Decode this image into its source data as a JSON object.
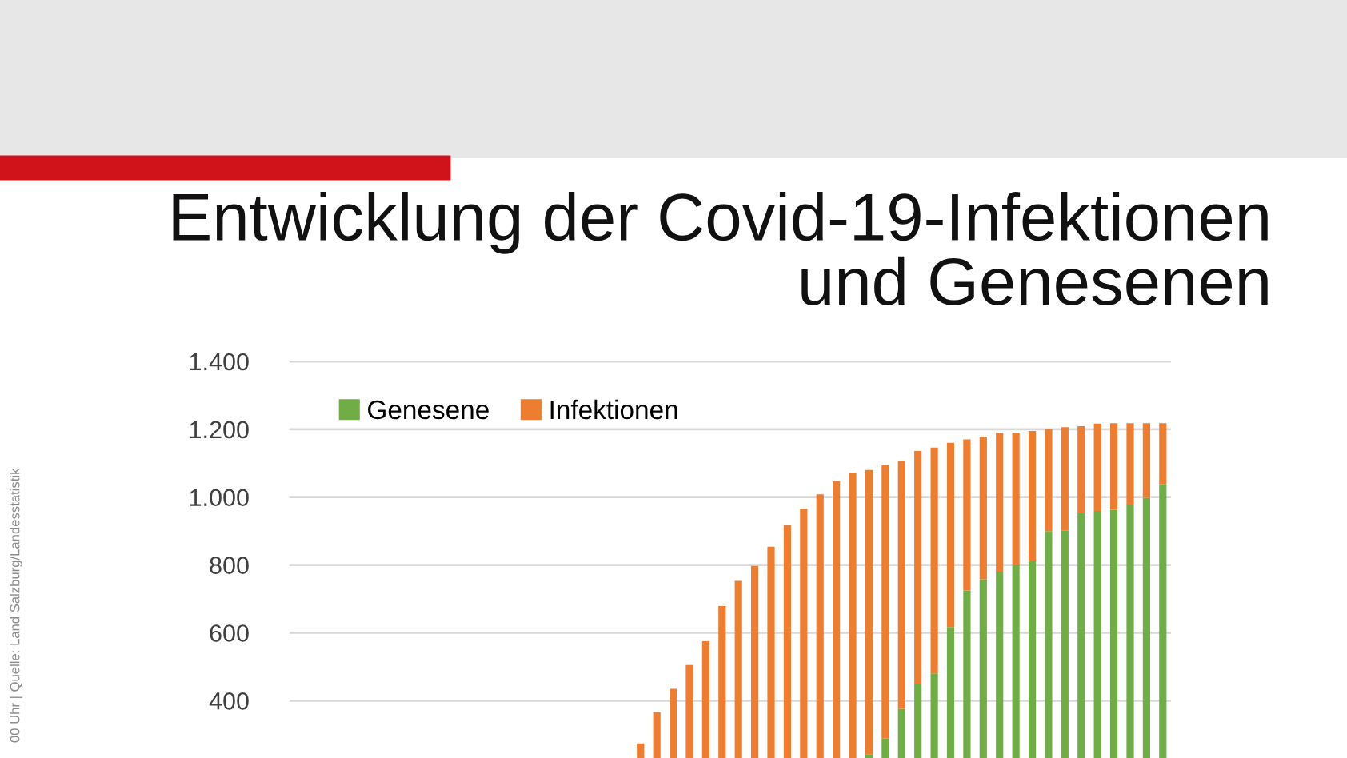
{
  "chart_data": {
    "type": "bar",
    "title": "Entwicklung der Covid-19-Infektionen\nund Genesenen",
    "stacked": true,
    "categories": [
      null,
      null,
      null,
      null,
      null,
      null,
      null,
      null,
      null,
      null,
      null,
      null,
      null,
      null,
      null,
      null,
      null,
      null,
      null,
      null,
      null,
      null,
      null,
      null,
      null,
      null,
      null,
      null,
      null,
      null,
      null,
      null,
      null,
      null,
      null,
      null,
      null,
      null,
      null,
      null,
      null,
      null,
      null,
      null,
      null,
      null,
      null,
      null,
      null,
      null,
      null,
      null,
      null,
      null
    ],
    "series": [
      {
        "name": "Genesene",
        "color": "#70ad47",
        "values": [
          null,
          null,
          null,
          null,
          null,
          null,
          null,
          null,
          null,
          null,
          null,
          null,
          null,
          null,
          null,
          null,
          null,
          null,
          null,
          null,
          null,
          null,
          null,
          null,
          null,
          null,
          null,
          null,
          null,
          null,
          null,
          null,
          null,
          null,
          null,
          242,
          288,
          376,
          450,
          480,
          617,
          725,
          758,
          780,
          800,
          812,
          900,
          901,
          954,
          959,
          963,
          977,
          998,
          1038
        ]
      },
      {
        "name": "Infektionen",
        "color": "#ed7d31",
        "values": [
          null,
          null,
          null,
          null,
          null,
          null,
          null,
          null,
          null,
          null,
          null,
          null,
          null,
          null,
          null,
          null,
          null,
          null,
          null,
          null,
          null,
          274,
          366,
          435,
          505,
          575,
          679,
          753,
          797,
          854,
          918,
          966,
          1008,
          1047,
          1071,
          838,
          806,
          731,
          686,
          666,
          543,
          445,
          420,
          409,
          390,
          383,
          301,
          305,
          255,
          258,
          255,
          241,
          220,
          180
        ]
      }
    ],
    "ylim": [
      0,
      1400
    ],
    "yticks": [
      {
        "value": 400,
        "label": "400"
      },
      {
        "value": 600,
        "label": "600"
      },
      {
        "value": 800,
        "label": "800"
      },
      {
        "value": 1000,
        "label": "1.000"
      },
      {
        "value": 1200,
        "label": "1.200"
      },
      {
        "value": 1400,
        "label": "1.400"
      }
    ],
    "grid": "y",
    "legend": "top left",
    "tick_labels": "y",
    "annotations": [
      "00 Uhr | Quelle: Land Salzburg/Landesstatistik"
    ]
  }
}
